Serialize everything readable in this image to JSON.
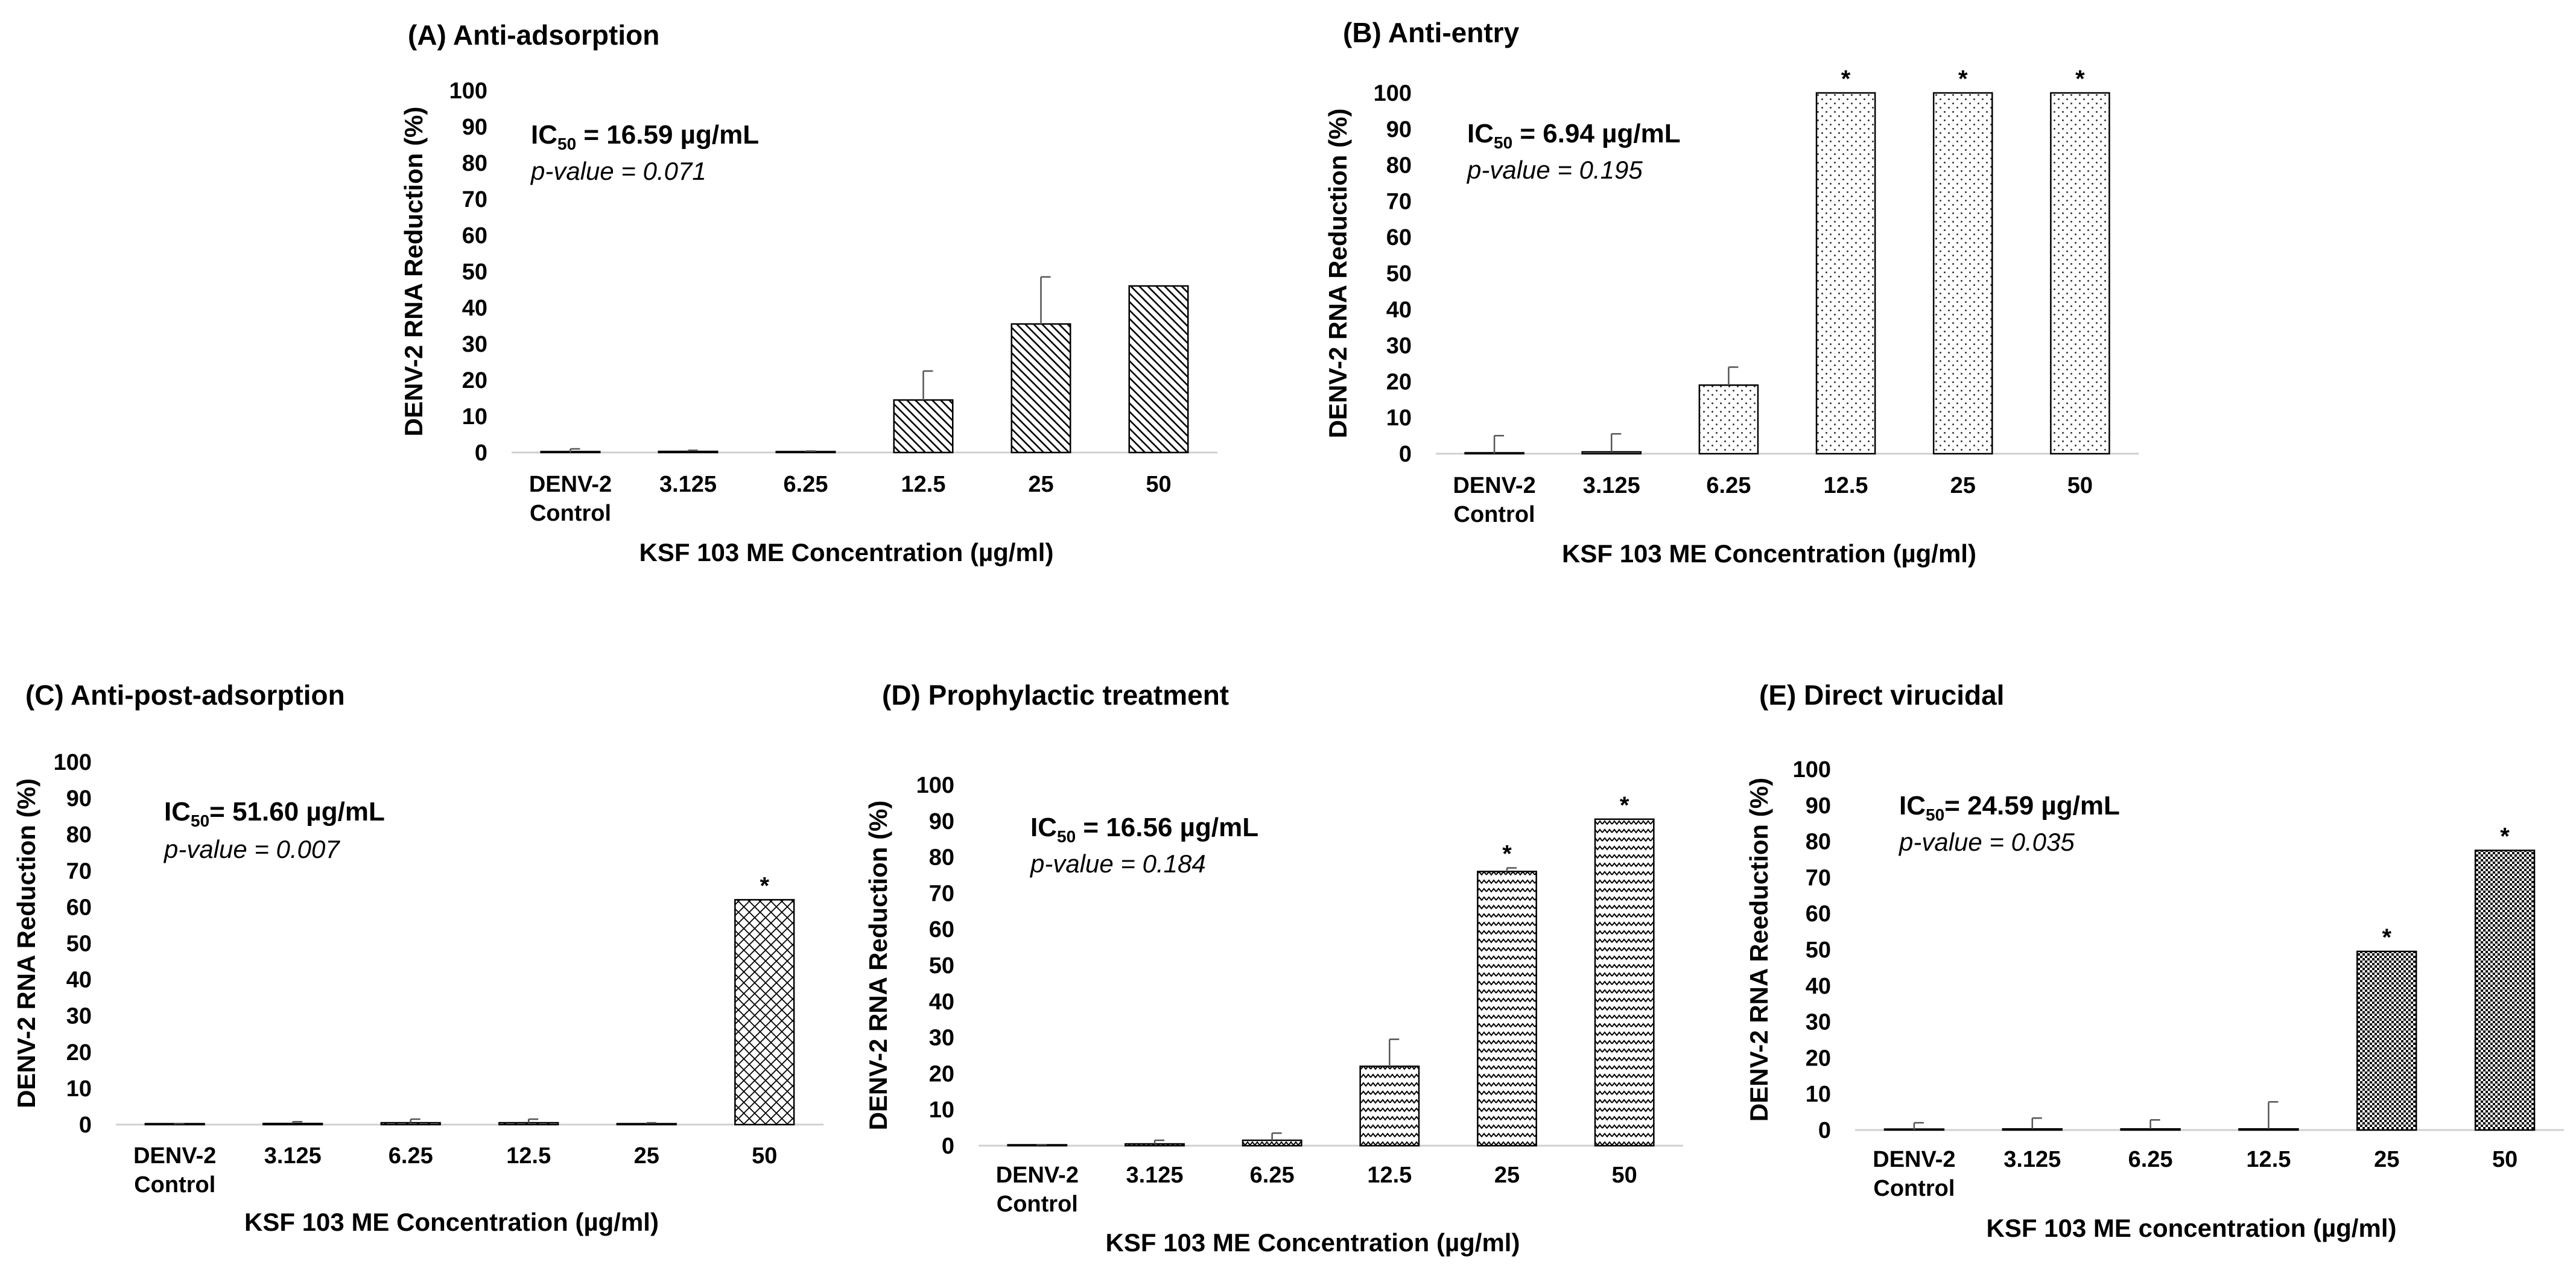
{
  "chart_data": [
    {
      "type": "bar",
      "title": "(A) Anti-adsorption",
      "ic50_prefix": "IC",
      "ic50_sub": "50",
      "ic50_value": " = 16.59 µg/mL",
      "p_value": "p-value = 0.071",
      "xlabel": "KSF 103 ME Concentration (µg/ml)",
      "ylabel": "DENV-2 RNA Reduction (%)",
      "ylim": [
        0,
        100
      ],
      "yticks": [
        "0",
        "10",
        "20",
        "30",
        "40",
        "50",
        "60",
        "70",
        "80",
        "90",
        "100"
      ],
      "categories": [
        [
          "DENV-2",
          "Control"
        ],
        [
          "3.125"
        ],
        [
          "6.25"
        ],
        [
          "12.5"
        ],
        [
          "25"
        ],
        [
          "50"
        ]
      ],
      "values": [
        0,
        0.3,
        0.2,
        14.5,
        35.5,
        46
      ],
      "errors": [
        1,
        0.3,
        0.2,
        8,
        13,
        0
      ],
      "significant": [
        false,
        false,
        false,
        false,
        false,
        false
      ],
      "pattern": "diagonal"
    },
    {
      "type": "bar",
      "title": "(B) Anti-entry",
      "ic50_prefix": "IC",
      "ic50_sub": "50",
      "ic50_value": " = 6.94 µg/mL",
      "p_value": "p-value = 0.195",
      "xlabel": "KSF 103 ME Concentration (µg/ml)",
      "ylabel": "DENV-2 RNA Reduction (%)",
      "ylim": [
        0,
        100
      ],
      "yticks": [
        "0",
        "10",
        "20",
        "30",
        "40",
        "50",
        "60",
        "70",
        "80",
        "90",
        "100"
      ],
      "categories": [
        [
          "DENV-2",
          "Control"
        ],
        [
          "3.125"
        ],
        [
          "6.25"
        ],
        [
          "12.5"
        ],
        [
          "25"
        ],
        [
          "50"
        ]
      ],
      "values": [
        0,
        0.5,
        19,
        100,
        100,
        100
      ],
      "errors": [
        5,
        5,
        5,
        0,
        0,
        0
      ],
      "significant": [
        false,
        false,
        false,
        true,
        true,
        true
      ],
      "pattern": "dots"
    },
    {
      "type": "bar",
      "title": "(C) Anti-post-adsorption",
      "ic50_prefix": "IC",
      "ic50_sub": "50",
      "ic50_value": "= 51.60 µg/mL",
      "p_value": "p-value = 0.007",
      "xlabel": "KSF 103 ME Concentration (µg/ml)",
      "ylabel": "DENV-2 RNA Reduction (%)",
      "ylim": [
        0,
        100
      ],
      "yticks": [
        "0",
        "10",
        "20",
        "30",
        "40",
        "50",
        "60",
        "70",
        "80",
        "90",
        "100"
      ],
      "categories": [
        [
          "DENV-2",
          "Control"
        ],
        [
          "3.125"
        ],
        [
          "6.25"
        ],
        [
          "12.5"
        ],
        [
          "25"
        ],
        [
          "50"
        ]
      ],
      "values": [
        0,
        0.3,
        0.5,
        0.5,
        0.2,
        62
      ],
      "errors": [
        0.3,
        0.5,
        1,
        1,
        0.3,
        0
      ],
      "significant": [
        false,
        false,
        false,
        false,
        false,
        true
      ],
      "pattern": "crosshatch"
    },
    {
      "type": "bar",
      "title": "(D) Prophylactic treatment",
      "ic50_prefix": "IC",
      "ic50_sub": "50",
      "ic50_value": " = 16.56 µg/mL",
      "p_value": "p-value = 0.184",
      "xlabel": "KSF 103 ME Concentration (µg/ml)",
      "ylabel": "DENV-2 RNA Reduction (%)",
      "ylim": [
        0,
        100
      ],
      "yticks": [
        "0",
        "10",
        "20",
        "30",
        "40",
        "50",
        "60",
        "70",
        "80",
        "90",
        "100"
      ],
      "categories": [
        [
          "DENV-2",
          "Control"
        ],
        [
          "3.125"
        ],
        [
          "6.25"
        ],
        [
          "12.5"
        ],
        [
          "25"
        ],
        [
          "50"
        ]
      ],
      "values": [
        0,
        0.5,
        1.5,
        22,
        76,
        90.5
      ],
      "errors": [
        0.3,
        1,
        2,
        7.5,
        1,
        0
      ],
      "significant": [
        false,
        false,
        false,
        false,
        true,
        true
      ],
      "pattern": "zigzag"
    },
    {
      "type": "bar",
      "title": "(E) Direct virucidal",
      "ic50_prefix": "IC",
      "ic50_sub": "50",
      "ic50_value": "= 24.59 µg/mL",
      "p_value": "p-value = 0.035",
      "xlabel": "KSF 103 ME concentration (µg/ml)",
      "ylabel": "DENV-2 RNA Reeduction (%)",
      "ylim": [
        0,
        100
      ],
      "yticks": [
        "0",
        "10",
        "20",
        "30",
        "40",
        "50",
        "60",
        "70",
        "80",
        "90",
        "100"
      ],
      "categories": [
        [
          "DENV-2",
          "Control"
        ],
        [
          "3.125"
        ],
        [
          "6.25"
        ],
        [
          "12.5"
        ],
        [
          "25"
        ],
        [
          "50"
        ]
      ],
      "values": [
        0,
        0.3,
        0.3,
        0.3,
        49.5,
        77.5
      ],
      "errors": [
        2,
        3,
        2.5,
        7.5,
        0,
        0
      ],
      "significant": [
        false,
        false,
        false,
        false,
        true,
        true
      ],
      "pattern": "checker"
    }
  ]
}
